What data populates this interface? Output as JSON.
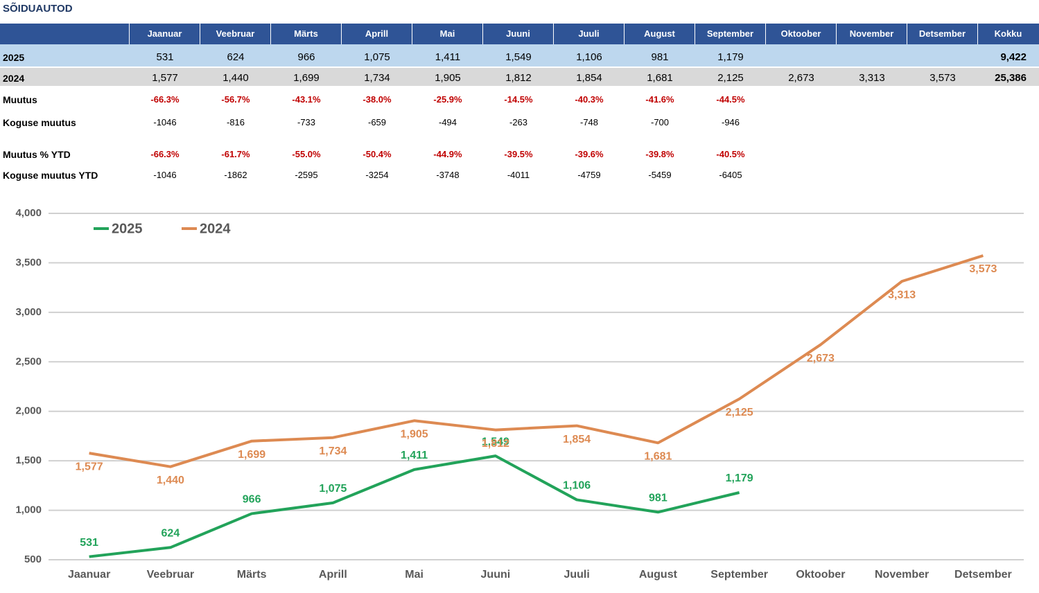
{
  "title": "SÕIDUAUTOD",
  "table": {
    "header": [
      "Jaanuar",
      "Veebruar",
      "Märts",
      "Aprill",
      "Mai",
      "Juuni",
      "Juuli",
      "August",
      "September",
      "Oktoober",
      "November",
      "Detsember",
      "Kokku"
    ],
    "rows": [
      {
        "label": "2025",
        "cells": [
          "531",
          "624",
          "966",
          "1,075",
          "1,411",
          "1,549",
          "1,106",
          "981",
          "1,179",
          null,
          null,
          null,
          "9,422"
        ]
      },
      {
        "label": "2024",
        "cells": [
          "1,577",
          "1,440",
          "1,699",
          "1,734",
          "1,905",
          "1,812",
          "1,854",
          "1,681",
          "2,125",
          "2,673",
          "3,313",
          "3,573",
          "25,386"
        ]
      },
      {
        "label": "Muutus",
        "cells": [
          "-66.3%",
          "-56.7%",
          "-43.1%",
          "-38.0%",
          "-25.9%",
          "-14.5%",
          "-40.3%",
          "-41.6%",
          "-44.5%",
          null,
          null,
          null,
          null
        ]
      },
      {
        "label": "Koguse muutus",
        "cells": [
          "-1046",
          "-816",
          "-733",
          "-659",
          "-494",
          "-263",
          "-748",
          "-700",
          "-946",
          null,
          null,
          null,
          null
        ]
      },
      {
        "label": "Muutus % YTD",
        "cells": [
          "-66.3%",
          "-61.7%",
          "-55.0%",
          "-50.4%",
          "-44.9%",
          "-39.5%",
          "-39.6%",
          "-39.8%",
          "-40.5%",
          null,
          null,
          null,
          null
        ]
      },
      {
        "label": "Koguse muutus YTD",
        "cells": [
          "-1046",
          "-1862",
          "-2595",
          "-3254",
          "-3748",
          "-4011",
          "-4759",
          "-5459",
          "-6405",
          null,
          null,
          null,
          null
        ]
      }
    ]
  },
  "chart_data": {
    "type": "line",
    "categories": [
      "Jaanuar",
      "Veebruar",
      "Märts",
      "Aprill",
      "Mai",
      "Juuni",
      "Juuli",
      "August",
      "September",
      "Oktoober",
      "November",
      "Detsember"
    ],
    "series": [
      {
        "name": "2025",
        "color": "#22a35a",
        "values": [
          531,
          624,
          966,
          1075,
          1411,
          1549,
          1106,
          981,
          1179,
          null,
          null,
          null
        ],
        "value_labels": [
          "531",
          "624",
          "966",
          "1,075",
          "1,411",
          "1,549",
          "1,106",
          "981",
          "1,179",
          null,
          null,
          null
        ]
      },
      {
        "name": "2024",
        "color": "#dd8a52",
        "values": [
          1577,
          1440,
          1699,
          1734,
          1905,
          1812,
          1854,
          1681,
          2125,
          2673,
          3313,
          3573
        ],
        "value_labels": [
          "1,577",
          "1,440",
          "1,699",
          "1,734",
          "1,905",
          "1,812",
          "1,854",
          "1,681",
          "2,125",
          "2,673",
          "3,313",
          "3,573"
        ]
      }
    ],
    "ylim": [
      500,
      4000
    ],
    "yticks": [
      500,
      {
        "value": 1000,
        "label": "1,000"
      },
      {
        "value": 1500,
        "label": "1,500"
      },
      {
        "value": 2000,
        "label": "2,000"
      },
      {
        "value": 2500,
        "label": "2,500"
      },
      {
        "value": 3000,
        "label": "3,000"
      },
      {
        "value": 3500,
        "label": "3,500"
      },
      {
        "value": 4000,
        "label": "4,000"
      }
    ],
    "grid": true,
    "legend": "top-left"
  }
}
